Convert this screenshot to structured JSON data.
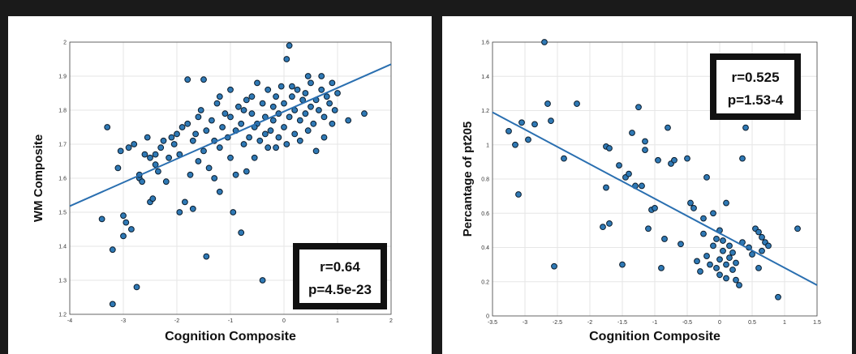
{
  "colors": {
    "point_fill": "#2f79b5",
    "point_stroke": "#0b1c2c",
    "line": "#2a6fb0",
    "grid": "#e6e6e6",
    "box_border": "#111111",
    "background": "#1a1a1a"
  },
  "chart_data": [
    {
      "type": "scatter",
      "title": "",
      "xlabel": "Cognition Composite",
      "ylabel": "WM Composite",
      "xlim": [
        -4,
        2
      ],
      "ylim": [
        1.2,
        2
      ],
      "xticks": [
        -4,
        -3,
        -2,
        -1,
        0,
        1,
        2
      ],
      "yticks": [
        1.2,
        1.3,
        1.4,
        1.5,
        1.6,
        1.7,
        1.8,
        1.9,
        2
      ],
      "grid": true,
      "stats": {
        "r": "r=0.64",
        "p": "p=4.5e-23"
      },
      "fit_line": {
        "x": [
          -4,
          2
        ],
        "y": [
          1.518,
          1.935
        ]
      },
      "points": [
        [
          -3.4,
          1.48
        ],
        [
          -3.3,
          1.75
        ],
        [
          -3.2,
          1.23
        ],
        [
          -3.2,
          1.39
        ],
        [
          -3.1,
          1.63
        ],
        [
          -3.05,
          1.68
        ],
        [
          -3.0,
          1.43
        ],
        [
          -3.0,
          1.49
        ],
        [
          -2.95,
          1.47
        ],
        [
          -2.9,
          1.69
        ],
        [
          -2.85,
          1.45
        ],
        [
          -2.8,
          1.7
        ],
        [
          -2.75,
          1.28
        ],
        [
          -2.7,
          1.6
        ],
        [
          -2.7,
          1.61
        ],
        [
          -2.65,
          1.59
        ],
        [
          -2.6,
          1.67
        ],
        [
          -2.55,
          1.72
        ],
        [
          -2.5,
          1.53
        ],
        [
          -2.5,
          1.66
        ],
        [
          -2.45,
          1.54
        ],
        [
          -2.4,
          1.64
        ],
        [
          -2.4,
          1.67
        ],
        [
          -2.35,
          1.62
        ],
        [
          -2.3,
          1.69
        ],
        [
          -2.25,
          1.71
        ],
        [
          -2.2,
          1.59
        ],
        [
          -2.15,
          1.66
        ],
        [
          -2.1,
          1.72
        ],
        [
          -2.05,
          1.7
        ],
        [
          -2.0,
          1.73
        ],
        [
          -1.95,
          1.67
        ],
        [
          -1.95,
          1.5
        ],
        [
          -1.9,
          1.75
        ],
        [
          -1.85,
          1.53
        ],
        [
          -1.8,
          1.76
        ],
        [
          -1.8,
          1.89
        ],
        [
          -1.75,
          1.61
        ],
        [
          -1.7,
          1.71
        ],
        [
          -1.7,
          1.51
        ],
        [
          -1.65,
          1.73
        ],
        [
          -1.6,
          1.78
        ],
        [
          -1.6,
          1.65
        ],
        [
          -1.55,
          1.8
        ],
        [
          -1.5,
          1.68
        ],
        [
          -1.5,
          1.89
        ],
        [
          -1.45,
          1.74
        ],
        [
          -1.45,
          1.37
        ],
        [
          -1.4,
          1.63
        ],
        [
          -1.35,
          1.77
        ],
        [
          -1.3,
          1.6
        ],
        [
          -1.3,
          1.71
        ],
        [
          -1.25,
          1.82
        ],
        [
          -1.2,
          1.56
        ],
        [
          -1.2,
          1.69
        ],
        [
          -1.15,
          1.75
        ],
        [
          -1.1,
          1.79
        ],
        [
          -1.05,
          1.72
        ],
        [
          -1.0,
          1.66
        ],
        [
          -1.0,
          1.78
        ],
        [
          -0.95,
          1.5
        ],
        [
          -0.9,
          1.74
        ],
        [
          -0.9,
          1.61
        ],
        [
          -0.85,
          1.81
        ],
        [
          -0.8,
          1.76
        ],
        [
          -0.8,
          1.44
        ],
        [
          -0.75,
          1.7
        ],
        [
          -0.7,
          1.83
        ],
        [
          -0.7,
          1.62
        ],
        [
          -0.65,
          1.72
        ],
        [
          -0.6,
          1.79
        ],
        [
          -0.6,
          1.84
        ],
        [
          -0.55,
          1.66
        ],
        [
          -0.5,
          1.76
        ],
        [
          -0.5,
          1.88
        ],
        [
          -0.45,
          1.71
        ],
        [
          -0.4,
          1.82
        ],
        [
          -0.4,
          1.3
        ],
        [
          -0.35,
          1.78
        ],
        [
          -0.3,
          1.86
        ],
        [
          -0.3,
          1.69
        ],
        [
          -0.25,
          1.74
        ],
        [
          -0.2,
          1.81
        ],
        [
          -0.2,
          1.77
        ],
        [
          -0.15,
          1.84
        ],
        [
          -0.1,
          1.72
        ],
        [
          -0.1,
          1.79
        ],
        [
          -0.05,
          1.87
        ],
        [
          0.0,
          1.75
        ],
        [
          0.0,
          1.82
        ],
        [
          0.05,
          1.7
        ],
        [
          0.05,
          1.95
        ],
        [
          0.1,
          1.78
        ],
        [
          0.1,
          1.99
        ],
        [
          0.15,
          1.84
        ],
        [
          0.2,
          1.73
        ],
        [
          0.2,
          1.8
        ],
        [
          0.25,
          1.86
        ],
        [
          0.3,
          1.77
        ],
        [
          0.3,
          1.71
        ],
        [
          0.35,
          1.83
        ],
        [
          0.4,
          1.79
        ],
        [
          0.4,
          1.85
        ],
        [
          0.45,
          1.74
        ],
        [
          0.5,
          1.81
        ],
        [
          0.5,
          1.88
        ],
        [
          0.55,
          1.76
        ],
        [
          0.6,
          1.83
        ],
        [
          0.6,
          1.68
        ],
        [
          0.65,
          1.8
        ],
        [
          0.7,
          1.86
        ],
        [
          0.7,
          1.9
        ],
        [
          0.75,
          1.78
        ],
        [
          0.8,
          1.84
        ],
        [
          0.85,
          1.82
        ],
        [
          0.9,
          1.88
        ],
        [
          0.95,
          1.8
        ],
        [
          1.0,
          1.85
        ],
        [
          1.2,
          1.77
        ],
        [
          1.5,
          1.79
        ],
        [
          -1.2,
          1.84
        ],
        [
          -1.0,
          1.86
        ],
        [
          -0.75,
          1.8
        ],
        [
          -0.55,
          1.75
        ],
        [
          -0.35,
          1.73
        ],
        [
          -0.15,
          1.69
        ],
        [
          0.15,
          1.87
        ],
        [
          0.45,
          1.9
        ],
        [
          0.75,
          1.72
        ],
        [
          0.9,
          1.76
        ]
      ]
    },
    {
      "type": "scatter",
      "title": "",
      "xlabel": "Cognition Composite",
      "ylabel": "Percantage of pt205",
      "xlim": [
        -3.5,
        1.5
      ],
      "ylim": [
        0,
        1.6
      ],
      "xticks": [
        -3.5,
        -3,
        -2.5,
        -2,
        -1.5,
        -1,
        -0.5,
        0,
        0.5,
        1,
        1.5
      ],
      "yticks": [
        0,
        0.2,
        0.4,
        0.6,
        0.8,
        1,
        1.2,
        1.4,
        1.6
      ],
      "grid": true,
      "stats": {
        "r": "r=0.525",
        "p": "p=1.53-4"
      },
      "fit_line": {
        "x": [
          -3.5,
          1.5
        ],
        "y": [
          1.19,
          0.18
        ]
      },
      "points": [
        [
          -3.25,
          1.08
        ],
        [
          -3.15,
          1.0
        ],
        [
          -3.1,
          0.71
        ],
        [
          -3.05,
          1.13
        ],
        [
          -2.95,
          1.03
        ],
        [
          -2.85,
          1.12
        ],
        [
          -2.7,
          1.6
        ],
        [
          -2.65,
          1.24
        ],
        [
          -2.6,
          1.14
        ],
        [
          -2.55,
          0.29
        ],
        [
          -2.4,
          0.92
        ],
        [
          -2.2,
          1.24
        ],
        [
          -1.8,
          0.52
        ],
        [
          -1.75,
          0.75
        ],
        [
          -1.75,
          0.99
        ],
        [
          -1.7,
          0.98
        ],
        [
          -1.7,
          0.54
        ],
        [
          -1.55,
          0.88
        ],
        [
          -1.5,
          0.3
        ],
        [
          -1.45,
          0.81
        ],
        [
          -1.4,
          0.83
        ],
        [
          -1.35,
          1.07
        ],
        [
          -1.3,
          0.76
        ],
        [
          -1.25,
          1.22
        ],
        [
          -1.2,
          0.76
        ],
        [
          -1.15,
          1.02
        ],
        [
          -1.15,
          0.97
        ],
        [
          -1.1,
          0.51
        ],
        [
          -1.05,
          0.62
        ],
        [
          -1.0,
          0.63
        ],
        [
          -0.95,
          0.91
        ],
        [
          -0.9,
          0.28
        ],
        [
          -0.85,
          0.45
        ],
        [
          -0.8,
          1.1
        ],
        [
          -0.75,
          0.89
        ],
        [
          -0.7,
          0.91
        ],
        [
          -0.6,
          0.42
        ],
        [
          -0.5,
          0.92
        ],
        [
          -0.45,
          0.66
        ],
        [
          -0.4,
          0.63
        ],
        [
          -0.35,
          0.32
        ],
        [
          -0.3,
          0.26
        ],
        [
          -0.25,
          0.57
        ],
        [
          -0.2,
          0.81
        ],
        [
          -0.2,
          0.35
        ],
        [
          -0.15,
          0.3
        ],
        [
          -0.1,
          0.6
        ],
        [
          -0.1,
          0.41
        ],
        [
          -0.05,
          0.28
        ],
        [
          -0.05,
          0.45
        ],
        [
          0.0,
          0.5
        ],
        [
          0.0,
          0.33
        ],
        [
          0.0,
          0.24
        ],
        [
          0.05,
          0.44
        ],
        [
          0.05,
          0.38
        ],
        [
          0.1,
          0.3
        ],
        [
          0.1,
          0.22
        ],
        [
          0.1,
          0.66
        ],
        [
          0.15,
          0.34
        ],
        [
          0.15,
          0.41
        ],
        [
          0.2,
          0.37
        ],
        [
          0.2,
          0.27
        ],
        [
          0.25,
          0.31
        ],
        [
          0.3,
          0.18
        ],
        [
          0.35,
          0.43
        ],
        [
          0.35,
          0.92
        ],
        [
          0.4,
          1.1
        ],
        [
          0.45,
          0.4
        ],
        [
          0.5,
          0.36
        ],
        [
          0.55,
          0.51
        ],
        [
          0.6,
          0.28
        ],
        [
          0.6,
          0.49
        ],
        [
          0.65,
          0.38
        ],
        [
          0.7,
          0.43
        ],
        [
          0.75,
          0.41
        ],
        [
          0.9,
          0.11
        ],
        [
          1.2,
          0.51
        ],
        [
          0.65,
          0.46
        ],
        [
          -0.25,
          0.48
        ],
        [
          0.25,
          0.21
        ]
      ]
    }
  ]
}
